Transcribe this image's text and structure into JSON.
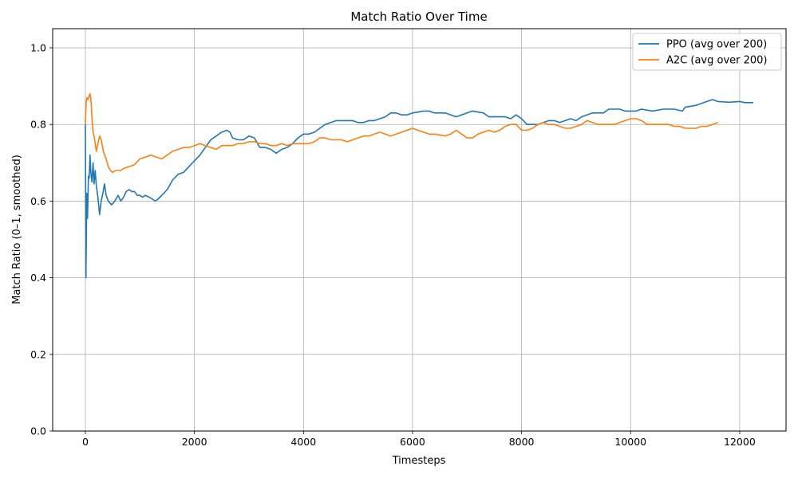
{
  "chart_data": {
    "type": "line",
    "title": "Match Ratio Over Time",
    "xlabel": "Timesteps",
    "ylabel": "Match Ratio (0–1, smoothed)",
    "xlim": [
      -600,
      12850
    ],
    "ylim": [
      0.0,
      1.05
    ],
    "xticks": [
      0,
      2000,
      4000,
      6000,
      8000,
      10000,
      12000
    ],
    "yticks": [
      0.0,
      0.2,
      0.4,
      0.6,
      0.8,
      1.0
    ],
    "xtick_labels": [
      "0",
      "2000",
      "4000",
      "6000",
      "8000",
      "10000",
      "12000"
    ],
    "ytick_labels": [
      "0.0",
      "0.2",
      "0.4",
      "0.6",
      "0.8",
      "1.0"
    ],
    "grid": true,
    "legend_position": "top-right",
    "series": [
      {
        "name": "PPO (avg over 200)",
        "color": "#1f77b4",
        "points": [
          [
            0,
            0.8
          ],
          [
            10,
            0.4
          ],
          [
            25,
            0.62
          ],
          [
            40,
            0.555
          ],
          [
            55,
            0.665
          ],
          [
            70,
            0.66
          ],
          [
            85,
            0.72
          ],
          [
            100,
            0.675
          ],
          [
            120,
            0.65
          ],
          [
            140,
            0.7
          ],
          [
            160,
            0.645
          ],
          [
            180,
            0.68
          ],
          [
            200,
            0.64
          ],
          [
            230,
            0.61
          ],
          [
            260,
            0.565
          ],
          [
            290,
            0.6
          ],
          [
            320,
            0.62
          ],
          [
            350,
            0.645
          ],
          [
            380,
            0.615
          ],
          [
            420,
            0.6
          ],
          [
            480,
            0.59
          ],
          [
            540,
            0.6
          ],
          [
            600,
            0.615
          ],
          [
            650,
            0.6
          ],
          [
            700,
            0.61
          ],
          [
            750,
            0.625
          ],
          [
            800,
            0.63
          ],
          [
            850,
            0.625
          ],
          [
            900,
            0.625
          ],
          [
            950,
            0.615
          ],
          [
            1000,
            0.615
          ],
          [
            1050,
            0.61
          ],
          [
            1100,
            0.615
          ],
          [
            1200,
            0.608
          ],
          [
            1280,
            0.6
          ],
          [
            1330,
            0.605
          ],
          [
            1400,
            0.615
          ],
          [
            1500,
            0.63
          ],
          [
            1600,
            0.655
          ],
          [
            1700,
            0.67
          ],
          [
            1800,
            0.675
          ],
          [
            1900,
            0.69
          ],
          [
            2000,
            0.705
          ],
          [
            2100,
            0.72
          ],
          [
            2200,
            0.74
          ],
          [
            2300,
            0.76
          ],
          [
            2400,
            0.77
          ],
          [
            2500,
            0.78
          ],
          [
            2600,
            0.785
          ],
          [
            2650,
            0.78
          ],
          [
            2700,
            0.765
          ],
          [
            2800,
            0.76
          ],
          [
            2900,
            0.76
          ],
          [
            3000,
            0.77
          ],
          [
            3100,
            0.765
          ],
          [
            3200,
            0.74
          ],
          [
            3300,
            0.74
          ],
          [
            3400,
            0.735
          ],
          [
            3500,
            0.725
          ],
          [
            3600,
            0.735
          ],
          [
            3700,
            0.74
          ],
          [
            3800,
            0.75
          ],
          [
            3900,
            0.765
          ],
          [
            4000,
            0.775
          ],
          [
            4100,
            0.775
          ],
          [
            4200,
            0.78
          ],
          [
            4300,
            0.79
          ],
          [
            4400,
            0.8
          ],
          [
            4500,
            0.805
          ],
          [
            4600,
            0.81
          ],
          [
            4700,
            0.81
          ],
          [
            4800,
            0.81
          ],
          [
            4900,
            0.81
          ],
          [
            5000,
            0.805
          ],
          [
            5100,
            0.805
          ],
          [
            5200,
            0.81
          ],
          [
            5300,
            0.81
          ],
          [
            5400,
            0.815
          ],
          [
            5500,
            0.82
          ],
          [
            5600,
            0.83
          ],
          [
            5700,
            0.83
          ],
          [
            5800,
            0.825
          ],
          [
            5900,
            0.825
          ],
          [
            6000,
            0.83
          ],
          [
            6200,
            0.835
          ],
          [
            6300,
            0.835
          ],
          [
            6400,
            0.83
          ],
          [
            6600,
            0.83
          ],
          [
            6800,
            0.82
          ],
          [
            7000,
            0.83
          ],
          [
            7100,
            0.835
          ],
          [
            7300,
            0.83
          ],
          [
            7400,
            0.82
          ],
          [
            7500,
            0.82
          ],
          [
            7600,
            0.82
          ],
          [
            7700,
            0.82
          ],
          [
            7800,
            0.815
          ],
          [
            7900,
            0.825
          ],
          [
            8000,
            0.815
          ],
          [
            8100,
            0.8
          ],
          [
            8200,
            0.8
          ],
          [
            8300,
            0.8
          ],
          [
            8400,
            0.805
          ],
          [
            8500,
            0.81
          ],
          [
            8600,
            0.81
          ],
          [
            8700,
            0.805
          ],
          [
            8800,
            0.81
          ],
          [
            8900,
            0.815
          ],
          [
            9000,
            0.81
          ],
          [
            9100,
            0.82
          ],
          [
            9200,
            0.825
          ],
          [
            9300,
            0.83
          ],
          [
            9400,
            0.83
          ],
          [
            9500,
            0.83
          ],
          [
            9600,
            0.84
          ],
          [
            9700,
            0.84
          ],
          [
            9800,
            0.84
          ],
          [
            9900,
            0.835
          ],
          [
            10000,
            0.835
          ],
          [
            10100,
            0.835
          ],
          [
            10200,
            0.84
          ],
          [
            10400,
            0.835
          ],
          [
            10600,
            0.84
          ],
          [
            10800,
            0.84
          ],
          [
            10950,
            0.835
          ],
          [
            11000,
            0.845
          ],
          [
            11200,
            0.85
          ],
          [
            11300,
            0.855
          ],
          [
            11400,
            0.86
          ],
          [
            11500,
            0.865
          ],
          [
            11600,
            0.86
          ],
          [
            11800,
            0.858
          ],
          [
            12000,
            0.86
          ],
          [
            12100,
            0.857
          ],
          [
            12250,
            0.857
          ]
        ]
      },
      {
        "name": "A2C (avg over 200)",
        "color": "#ff7f0e",
        "points": [
          [
            0,
            0.8
          ],
          [
            15,
            0.86
          ],
          [
            30,
            0.87
          ],
          [
            50,
            0.865
          ],
          [
            70,
            0.875
          ],
          [
            85,
            0.88
          ],
          [
            100,
            0.87
          ],
          [
            120,
            0.82
          ],
          [
            140,
            0.78
          ],
          [
            160,
            0.77
          ],
          [
            180,
            0.75
          ],
          [
            200,
            0.73
          ],
          [
            230,
            0.75
          ],
          [
            260,
            0.77
          ],
          [
            290,
            0.76
          ],
          [
            330,
            0.73
          ],
          [
            380,
            0.71
          ],
          [
            420,
            0.69
          ],
          [
            460,
            0.68
          ],
          [
            500,
            0.675
          ],
          [
            550,
            0.68
          ],
          [
            600,
            0.68
          ],
          [
            650,
            0.68
          ],
          [
            700,
            0.685
          ],
          [
            800,
            0.69
          ],
          [
            900,
            0.695
          ],
          [
            1000,
            0.71
          ],
          [
            1100,
            0.715
          ],
          [
            1200,
            0.72
          ],
          [
            1300,
            0.715
          ],
          [
            1400,
            0.71
          ],
          [
            1500,
            0.72
          ],
          [
            1600,
            0.73
          ],
          [
            1700,
            0.735
          ],
          [
            1800,
            0.74
          ],
          [
            1900,
            0.74
          ],
          [
            2000,
            0.745
          ],
          [
            2100,
            0.75
          ],
          [
            2200,
            0.745
          ],
          [
            2300,
            0.74
          ],
          [
            2400,
            0.735
          ],
          [
            2500,
            0.745
          ],
          [
            2600,
            0.745
          ],
          [
            2700,
            0.745
          ],
          [
            2800,
            0.75
          ],
          [
            2900,
            0.75
          ],
          [
            3000,
            0.755
          ],
          [
            3100,
            0.755
          ],
          [
            3200,
            0.75
          ],
          [
            3300,
            0.75
          ],
          [
            3400,
            0.745
          ],
          [
            3500,
            0.745
          ],
          [
            3600,
            0.75
          ],
          [
            3700,
            0.745
          ],
          [
            3800,
            0.75
          ],
          [
            3900,
            0.75
          ],
          [
            4000,
            0.75
          ],
          [
            4100,
            0.75
          ],
          [
            4200,
            0.755
          ],
          [
            4300,
            0.765
          ],
          [
            4400,
            0.765
          ],
          [
            4500,
            0.76
          ],
          [
            4600,
            0.76
          ],
          [
            4700,
            0.76
          ],
          [
            4800,
            0.755
          ],
          [
            4900,
            0.76
          ],
          [
            5000,
            0.765
          ],
          [
            5100,
            0.77
          ],
          [
            5200,
            0.77
          ],
          [
            5300,
            0.775
          ],
          [
            5400,
            0.78
          ],
          [
            5500,
            0.775
          ],
          [
            5600,
            0.77
          ],
          [
            5700,
            0.775
          ],
          [
            5800,
            0.78
          ],
          [
            5900,
            0.785
          ],
          [
            6000,
            0.79
          ],
          [
            6100,
            0.785
          ],
          [
            6200,
            0.78
          ],
          [
            6300,
            0.775
          ],
          [
            6400,
            0.775
          ],
          [
            6600,
            0.77
          ],
          [
            6700,
            0.775
          ],
          [
            6800,
            0.785
          ],
          [
            6900,
            0.775
          ],
          [
            7000,
            0.765
          ],
          [
            7100,
            0.765
          ],
          [
            7200,
            0.775
          ],
          [
            7300,
            0.78
          ],
          [
            7400,
            0.785
          ],
          [
            7500,
            0.78
          ],
          [
            7600,
            0.785
          ],
          [
            7700,
            0.795
          ],
          [
            7800,
            0.8
          ],
          [
            7900,
            0.8
          ],
          [
            8000,
            0.785
          ],
          [
            8100,
            0.785
          ],
          [
            8200,
            0.79
          ],
          [
            8300,
            0.8
          ],
          [
            8400,
            0.805
          ],
          [
            8500,
            0.8
          ],
          [
            8600,
            0.8
          ],
          [
            8700,
            0.795
          ],
          [
            8800,
            0.79
          ],
          [
            8900,
            0.79
          ],
          [
            9000,
            0.795
          ],
          [
            9100,
            0.8
          ],
          [
            9200,
            0.81
          ],
          [
            9300,
            0.805
          ],
          [
            9400,
            0.8
          ],
          [
            9500,
            0.8
          ],
          [
            9600,
            0.8
          ],
          [
            9700,
            0.8
          ],
          [
            9800,
            0.805
          ],
          [
            9900,
            0.81
          ],
          [
            10000,
            0.815
          ],
          [
            10100,
            0.815
          ],
          [
            10200,
            0.81
          ],
          [
            10300,
            0.8
          ],
          [
            10400,
            0.8
          ],
          [
            10500,
            0.8
          ],
          [
            10600,
            0.8
          ],
          [
            10700,
            0.8
          ],
          [
            10800,
            0.795
          ],
          [
            10900,
            0.795
          ],
          [
            11000,
            0.79
          ],
          [
            11100,
            0.79
          ],
          [
            11200,
            0.79
          ],
          [
            11300,
            0.795
          ],
          [
            11400,
            0.795
          ],
          [
            11500,
            0.8
          ],
          [
            11600,
            0.805
          ]
        ]
      }
    ]
  }
}
